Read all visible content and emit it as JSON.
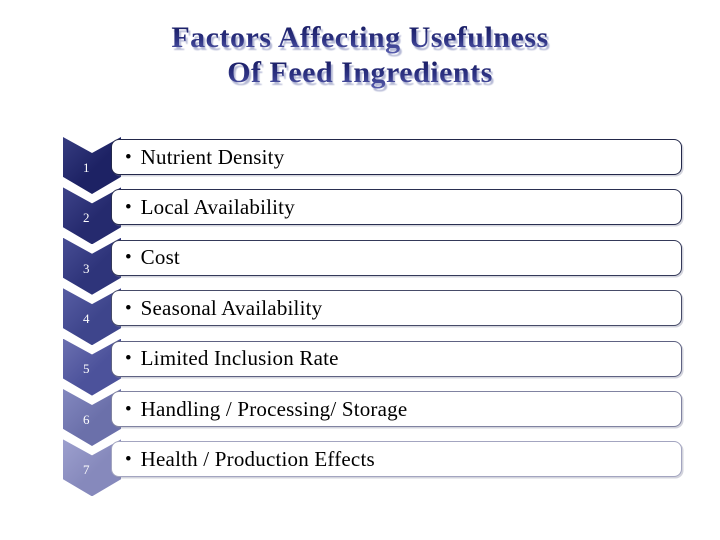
{
  "slide": {
    "title": {
      "line1": "Factors Affecting Usefulness",
      "line2": "Of Feed Ingredients",
      "text_color": "#272c7d",
      "shadow_color": "#b6bad6"
    },
    "bullet_char": "•",
    "items": [
      {
        "number": "1",
        "label": "Nutrient Density",
        "chevron_color": "#1d2264",
        "chevron_color_light": "#363c80",
        "border_color": "#23284a"
      },
      {
        "number": "2",
        "label": "Local Availability",
        "chevron_color": "#252a6e",
        "chevron_color_light": "#3e4389",
        "border_color": "#2a2f51"
      },
      {
        "number": "3",
        "label": "Cost",
        "chevron_color": "#2e347a",
        "chevron_color_light": "#474d94",
        "border_color": "#343959"
      },
      {
        "number": "4",
        "label": "Seasonal Availability",
        "chevron_color": "#3e458c",
        "chevron_color_light": "#575da3",
        "border_color": "#464b68"
      },
      {
        "number": "5",
        "label": "Limited Inclusion Rate",
        "chevron_color": "#4c529b",
        "chevron_color_light": "#6b70b0",
        "border_color": "#5e6282"
      },
      {
        "number": "6",
        "label": "Handling / Processing/ Storage",
        "chevron_color": "#6b70aa",
        "chevron_color_light": "#8388bf",
        "border_color": "#8083a1"
      },
      {
        "number": "7",
        "label": "Health / Production Effects",
        "chevron_color": "#8689bc",
        "chevron_color_light": "#9da0ce",
        "border_color": "#a3a5c0"
      }
    ],
    "layout": {
      "row_top_start": 137,
      "row_pitch": 50.4
    }
  }
}
